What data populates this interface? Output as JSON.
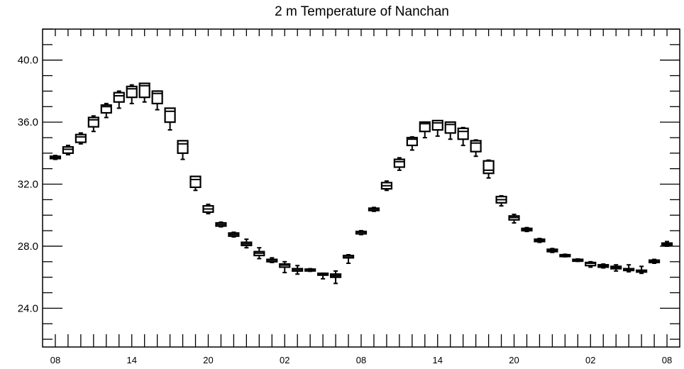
{
  "chart_data": {
    "type": "boxplot",
    "title": "2 m Temperature of Nanchan",
    "xlabel": "",
    "ylabel": "",
    "ylim": [
      21.5,
      42.0
    ],
    "y_ticks": [
      "24.0",
      "28.0",
      "32.0",
      "36.0",
      "40.0"
    ],
    "y_tick_values": [
      24.0,
      28.0,
      32.0,
      36.0,
      40.0
    ],
    "x_tick_labels": [
      "08",
      "14",
      "20",
      "02",
      "08",
      "14",
      "20",
      "02",
      "08"
    ],
    "x_tick_hours": [
      0,
      6,
      12,
      18,
      24,
      30,
      36,
      42,
      48
    ],
    "hours_range": [
      -1,
      49
    ],
    "grid": false,
    "boxes": [
      {
        "hour": 0,
        "q1": 33.65,
        "q3": 33.8,
        "median": 33.72,
        "min": 33.6,
        "max": 33.85
      },
      {
        "hour": 1,
        "q1": 34.0,
        "q3": 34.4,
        "median": 34.25,
        "min": 33.9,
        "max": 34.5
      },
      {
        "hour": 2,
        "q1": 34.7,
        "q3": 35.2,
        "median": 35.05,
        "min": 34.6,
        "max": 35.3
      },
      {
        "hour": 3,
        "q1": 35.7,
        "q3": 36.3,
        "median": 36.15,
        "min": 35.4,
        "max": 36.4
      },
      {
        "hour": 4,
        "q1": 36.6,
        "q3": 37.1,
        "median": 37.0,
        "min": 36.3,
        "max": 37.2
      },
      {
        "hour": 5,
        "q1": 37.3,
        "q3": 37.9,
        "median": 37.7,
        "min": 36.9,
        "max": 38.0
      },
      {
        "hour": 6,
        "q1": 37.6,
        "q3": 38.3,
        "median": 38.15,
        "min": 37.2,
        "max": 38.4
      },
      {
        "hour": 7,
        "q1": 37.6,
        "q3": 38.5,
        "median": 38.35,
        "min": 37.3,
        "max": 38.5
      },
      {
        "hour": 8,
        "q1": 37.2,
        "q3": 38.0,
        "median": 37.85,
        "min": 36.8,
        "max": 38.0
      },
      {
        "hour": 9,
        "q1": 36.0,
        "q3": 36.9,
        "median": 36.7,
        "min": 35.5,
        "max": 36.9
      },
      {
        "hour": 10,
        "q1": 34.0,
        "q3": 34.8,
        "median": 34.6,
        "min": 33.6,
        "max": 34.8
      },
      {
        "hour": 11,
        "q1": 31.8,
        "q3": 32.5,
        "median": 32.3,
        "min": 31.6,
        "max": 32.5
      },
      {
        "hour": 12,
        "q1": 30.2,
        "q3": 30.6,
        "median": 30.4,
        "min": 30.1,
        "max": 30.7
      },
      {
        "hour": 13,
        "q1": 29.3,
        "q3": 29.5,
        "median": 29.4,
        "min": 29.25,
        "max": 29.55
      },
      {
        "hour": 14,
        "q1": 28.65,
        "q3": 28.85,
        "median": 28.75,
        "min": 28.6,
        "max": 28.9
      },
      {
        "hour": 15,
        "q1": 28.05,
        "q3": 28.25,
        "median": 28.15,
        "min": 27.9,
        "max": 28.45
      },
      {
        "hour": 16,
        "q1": 27.4,
        "q3": 27.65,
        "median": 27.55,
        "min": 27.2,
        "max": 27.9
      },
      {
        "hour": 17,
        "q1": 27.0,
        "q3": 27.15,
        "median": 27.1,
        "min": 26.95,
        "max": 27.25
      },
      {
        "hour": 18,
        "q1": 26.65,
        "q3": 26.85,
        "median": 26.78,
        "min": 26.3,
        "max": 27.0
      },
      {
        "hour": 19,
        "q1": 26.4,
        "q3": 26.55,
        "median": 26.5,
        "min": 26.2,
        "max": 26.75
      },
      {
        "hour": 20,
        "q1": 26.42,
        "q3": 26.52,
        "median": 26.48,
        "min": 26.38,
        "max": 26.55
      },
      {
        "hour": 21,
        "q1": 26.15,
        "q3": 26.25,
        "median": 26.2,
        "min": 25.9,
        "max": 26.25
      },
      {
        "hour": 22,
        "q1": 26.0,
        "q3": 26.2,
        "median": 26.1,
        "min": 25.6,
        "max": 26.4
      },
      {
        "hour": 23,
        "q1": 27.25,
        "q3": 27.4,
        "median": 27.3,
        "min": 26.9,
        "max": 27.45
      },
      {
        "hour": 24,
        "q1": 28.8,
        "q3": 28.95,
        "median": 28.9,
        "min": 28.75,
        "max": 29.0
      },
      {
        "hour": 25,
        "q1": 30.3,
        "q3": 30.45,
        "median": 30.4,
        "min": 30.25,
        "max": 30.5
      },
      {
        "hour": 26,
        "q1": 31.7,
        "q3": 32.1,
        "median": 31.9,
        "min": 31.6,
        "max": 32.2
      },
      {
        "hour": 27,
        "q1": 33.1,
        "q3": 33.6,
        "median": 33.45,
        "min": 32.9,
        "max": 33.7
      },
      {
        "hour": 28,
        "q1": 34.5,
        "q3": 35.0,
        "median": 34.9,
        "min": 34.2,
        "max": 35.05
      },
      {
        "hour": 29,
        "q1": 35.4,
        "q3": 36.0,
        "median": 35.9,
        "min": 35.0,
        "max": 36.0
      },
      {
        "hour": 30,
        "q1": 35.5,
        "q3": 36.1,
        "median": 35.95,
        "min": 35.1,
        "max": 36.1
      },
      {
        "hour": 31,
        "q1": 35.3,
        "q3": 36.0,
        "median": 35.85,
        "min": 34.9,
        "max": 36.0
      },
      {
        "hour": 32,
        "q1": 34.9,
        "q3": 35.6,
        "median": 35.4,
        "min": 34.5,
        "max": 35.65
      },
      {
        "hour": 33,
        "q1": 34.1,
        "q3": 34.8,
        "median": 34.65,
        "min": 33.8,
        "max": 34.85
      },
      {
        "hour": 34,
        "q1": 32.7,
        "q3": 33.5,
        "median": 32.9,
        "min": 32.4,
        "max": 33.55
      },
      {
        "hour": 35,
        "q1": 30.8,
        "q3": 31.2,
        "median": 31.0,
        "min": 30.6,
        "max": 31.25
      },
      {
        "hour": 36,
        "q1": 29.7,
        "q3": 29.95,
        "median": 29.85,
        "min": 29.5,
        "max": 30.05
      },
      {
        "hour": 37,
        "q1": 29.0,
        "q3": 29.15,
        "median": 29.08,
        "min": 28.95,
        "max": 29.2
      },
      {
        "hour": 38,
        "q1": 28.3,
        "q3": 28.45,
        "median": 28.38,
        "min": 28.25,
        "max": 28.5
      },
      {
        "hour": 39,
        "q1": 27.65,
        "q3": 27.8,
        "median": 27.73,
        "min": 27.6,
        "max": 27.85
      },
      {
        "hour": 40,
        "q1": 27.35,
        "q3": 27.45,
        "median": 27.4,
        "min": 27.32,
        "max": 27.48
      },
      {
        "hour": 41,
        "q1": 27.05,
        "q3": 27.15,
        "median": 27.1,
        "min": 27.02,
        "max": 27.18
      },
      {
        "hour": 42,
        "q1": 26.75,
        "q3": 26.95,
        "median": 26.9,
        "min": 26.65,
        "max": 27.0
      },
      {
        "hour": 43,
        "q1": 26.65,
        "q3": 26.8,
        "median": 26.72,
        "min": 26.6,
        "max": 26.85
      },
      {
        "hour": 44,
        "q1": 26.55,
        "q3": 26.7,
        "median": 26.62,
        "min": 26.4,
        "max": 26.8
      },
      {
        "hour": 45,
        "q1": 26.45,
        "q3": 26.55,
        "median": 26.5,
        "min": 26.35,
        "max": 26.8
      },
      {
        "hour": 46,
        "q1": 26.35,
        "q3": 26.45,
        "median": 26.4,
        "min": 26.25,
        "max": 26.7
      },
      {
        "hour": 47,
        "q1": 26.95,
        "q3": 27.1,
        "median": 27.02,
        "min": 26.9,
        "max": 27.15
      },
      {
        "hour": 48,
        "q1": 28.05,
        "q3": 28.2,
        "median": 28.12,
        "min": 28.0,
        "max": 28.3
      }
    ],
    "colors": {
      "line": "#000000",
      "background": "#ffffff"
    }
  }
}
